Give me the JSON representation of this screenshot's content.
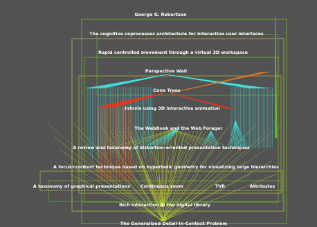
{
  "colors": {
    "background": "#525252",
    "edge_yellow": "#e8e62a",
    "edge_green": "#7ecf2f",
    "edge_cyan": "#44e6e0",
    "edge_red": "#e8371c",
    "edge_orange": "#ee7a1c",
    "label": "#ffffff"
  },
  "nodes": [
    {
      "id": "robertson",
      "label": "George G. Robertson"
    },
    {
      "id": "cog-coprocessor",
      "label": "The cognitive coprocessor architecture for interactive user interfaces"
    },
    {
      "id": "rapid-movement",
      "label": "Rapid controlled movement through a virtual 3D workspace"
    },
    {
      "id": "perspective-wall",
      "label": "Perspective Wall"
    },
    {
      "id": "cone-trees",
      "label": "Cone Trees"
    },
    {
      "id": "info-3d",
      "label": "Infovis using 3D interactive animation"
    },
    {
      "id": "webbook",
      "label": "The WebBook and the Web Forager"
    },
    {
      "id": "focus-context-review",
      "label": "A review and taxonomy of distortion-oriented presentation techniques"
    },
    {
      "id": "hyperbolic",
      "label": "A focus+context technique based on hyperbolic geometry for visualizing large hierarchies"
    },
    {
      "id": "taxonomy-graphical",
      "label": "A taxonomy of graphical presentations"
    },
    {
      "id": "continuous-zoom",
      "label": "Continuous zoom"
    },
    {
      "id": "tvr",
      "label": "TVR"
    },
    {
      "id": "attributes",
      "label": "Attributes"
    },
    {
      "id": "rich-interaction",
      "label": "Rich Interaction in the digital library"
    },
    {
      "id": "generalized-fisheye",
      "label": "The Generalized Detail-in-Context Problem"
    }
  ]
}
